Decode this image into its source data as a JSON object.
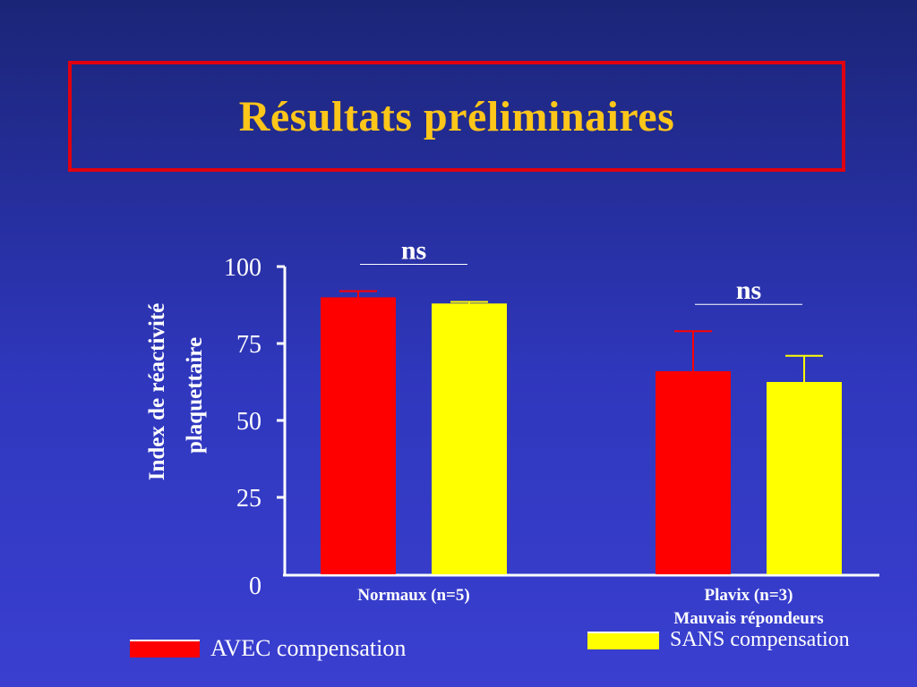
{
  "slide": {
    "title": "Résultats préliminaires"
  },
  "colors": {
    "avec": "#ff0000",
    "sans": "#ffff00",
    "axis": "#ffffff",
    "title_text": "#ffc61a",
    "title_border": "#e00010"
  },
  "legend": {
    "avec_label": "AVEC compensation",
    "sans_label": "SANS compensation"
  },
  "chart_data": {
    "type": "bar",
    "title": "",
    "ylabel_line1": "Index de réactivité",
    "ylabel_line2": "plaquettaire",
    "xlabel": "",
    "ylim": [
      0,
      100
    ],
    "yticks": [
      0,
      25,
      50,
      75,
      100
    ],
    "grid": false,
    "legend_position": "bottom",
    "categories": [
      {
        "line1": "Normaux (n=5)",
        "line2": ""
      },
      {
        "line1": "Plavix (n=3)",
        "line2": "Mauvais répondeurs"
      }
    ],
    "series": [
      {
        "name": "AVEC compensation",
        "color_key": "avec",
        "values": [
          90,
          66
        ],
        "errors": [
          2,
          13
        ]
      },
      {
        "name": "SANS compensation",
        "color_key": "sans",
        "values": [
          88,
          62.5
        ],
        "errors": [
          0.5,
          8.5
        ]
      }
    ],
    "annotations": [
      {
        "text": "ns",
        "category_index": 0
      },
      {
        "text": "ns",
        "category_index": 1
      }
    ]
  }
}
